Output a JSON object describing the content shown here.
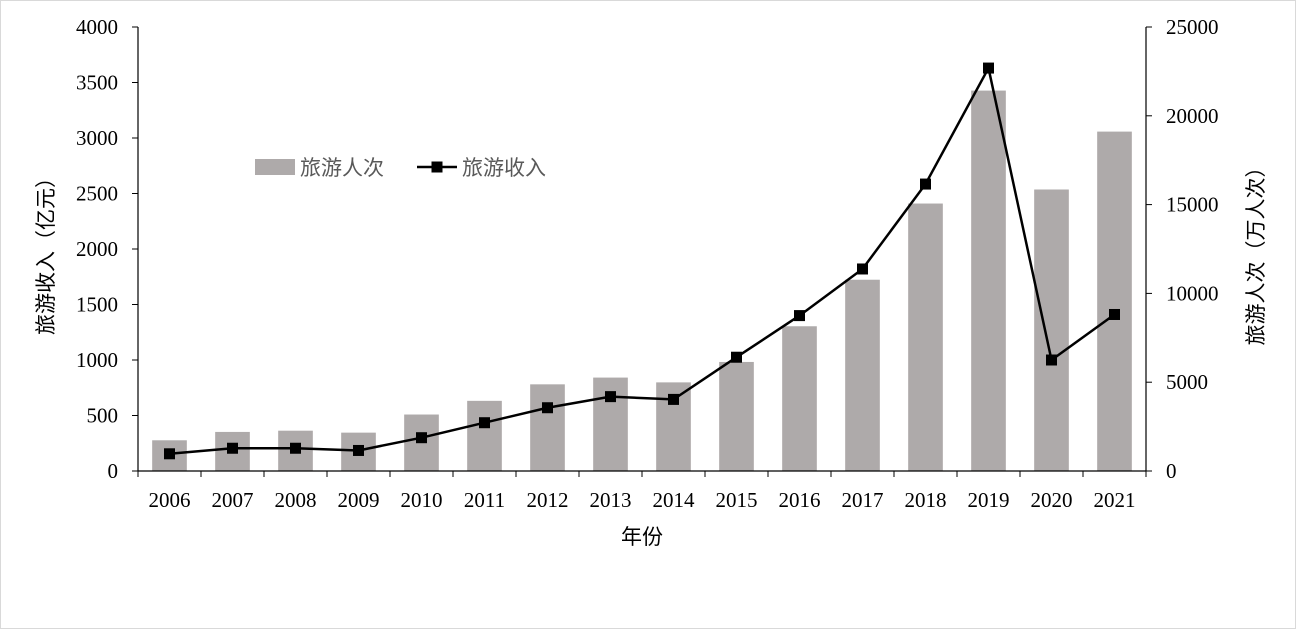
{
  "chart_data": {
    "type": "bar",
    "categories": [
      "2006",
      "2007",
      "2008",
      "2009",
      "2010",
      "2011",
      "2012",
      "2013",
      "2014",
      "2015",
      "2016",
      "2017",
      "2018",
      "2019",
      "2020",
      "2021"
    ],
    "series": [
      {
        "name": "旅游人次",
        "type": "bar",
        "axis": "right",
        "color": "#aeaaaa",
        "values": [
          1730,
          2200,
          2270,
          2160,
          3180,
          3950,
          4880,
          5260,
          4990,
          6140,
          8150,
          10770,
          15060,
          21420,
          15850,
          19110
        ]
      },
      {
        "name": "旅游收入",
        "type": "line",
        "axis": "left",
        "color": "#000000",
        "marker": "square",
        "values": [
          155,
          205,
          205,
          185,
          300,
          435,
          570,
          670,
          645,
          1025,
          1400,
          1820,
          2585,
          3630,
          1000,
          1410
        ]
      }
    ],
    "xlabel": "年份",
    "ylabel_left": "旅游收入（亿元）",
    "ylabel_right": "旅游人次（万人次）",
    "ylim_left": [
      0,
      4000
    ],
    "yticks_left": [
      "0",
      "500",
      "1000",
      "1500",
      "2000",
      "2500",
      "3000",
      "3500",
      "4000"
    ],
    "ylim_right": [
      0,
      25000
    ],
    "yticks_right": [
      "0",
      "5000",
      "10000",
      "15000",
      "20000",
      "25000"
    ],
    "grid": false,
    "legend_position": "upper-left inside plot"
  }
}
